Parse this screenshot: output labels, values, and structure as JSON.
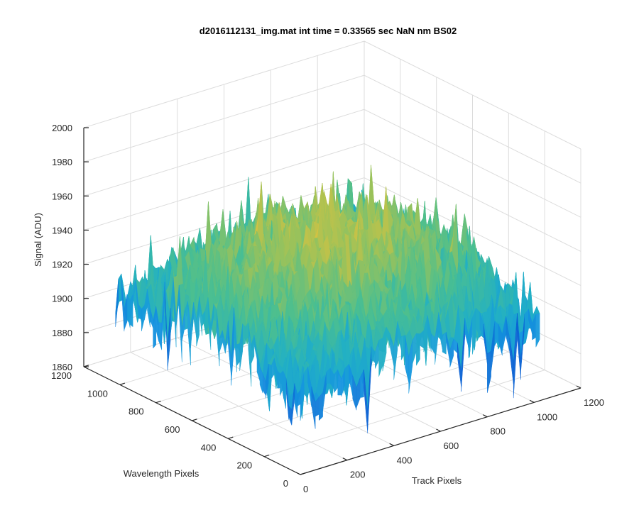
{
  "chart_data": {
    "type": "surface",
    "title": "d2016112131_img.mat int time = 0.33565 sec  NaN nm BS02",
    "xlabel": "Track Pixels",
    "ylabel": "Wavelength Pixels",
    "zlabel": "Signal (ADU)",
    "xlim": [
      0,
      1200
    ],
    "ylim": [
      0,
      1200
    ],
    "zlim": [
      1860,
      2000
    ],
    "x_ticks": [
      "0",
      "200",
      "400",
      "600",
      "800",
      "1000",
      "1200"
    ],
    "y_ticks": [
      "0",
      "200",
      "400",
      "600",
      "800",
      "1000",
      "1200"
    ],
    "z_ticks": [
      "1860",
      "1880",
      "1900",
      "1920",
      "1940",
      "1960",
      "1980",
      "2000"
    ],
    "grid": true,
    "colormap": [
      "#0b63d4",
      "#1596e0",
      "#22b0c4",
      "#4cbf8f",
      "#9bc25a",
      "#e1c23c"
    ],
    "surface_description": {
      "x_range": [
        0,
        1024
      ],
      "y_range": [
        0,
        1024
      ],
      "mean_signal": 1925,
      "edge_signal": 1908,
      "center_peak_signal": 1948,
      "noise_amplitude": 25
    }
  }
}
